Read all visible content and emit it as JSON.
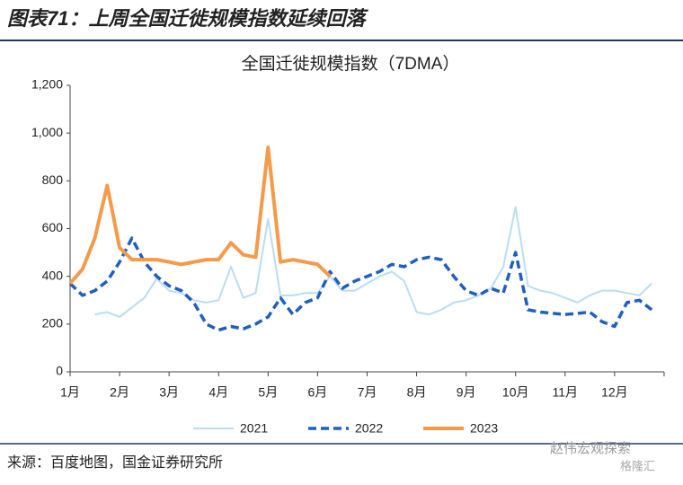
{
  "header_title": "图表71：上周全国迁徙规模指数延续回落",
  "source": "来源：百度地图，国金证券研究所",
  "watermark": [
    "赵伟宏观探索",
    "格隆汇"
  ],
  "chart_data": {
    "type": "line",
    "title": "全国迁徙规模指数（7DMA）",
    "categories": [
      "1月",
      null,
      null,
      null,
      "2月",
      null,
      null,
      null,
      "3月",
      null,
      null,
      null,
      "4月",
      null,
      null,
      null,
      "5月",
      null,
      null,
      null,
      "6月",
      null,
      null,
      null,
      "7月",
      null,
      null,
      null,
      "8月",
      null,
      null,
      null,
      "9月",
      null,
      null,
      null,
      "10月",
      null,
      null,
      null,
      "11月",
      null,
      null,
      null,
      "12月",
      null,
      null,
      null
    ],
    "ylim": [
      0,
      1200
    ],
    "yticks": [
      0,
      200,
      400,
      600,
      800,
      {
        "value": 1000,
        "label": "1,000"
      },
      {
        "value": 1200,
        "label": "1,200"
      }
    ],
    "legend": "bottom",
    "series": [
      {
        "name": "2021",
        "color": "#b9ddf2",
        "style": "solid",
        "values": [
          null,
          null,
          240,
          250,
          230,
          270,
          310,
          390,
          340,
          330,
          300,
          290,
          300,
          440,
          310,
          330,
          640,
          320,
          320,
          330,
          330,
          400,
          340,
          340,
          370,
          400,
          420,
          380,
          250,
          240,
          260,
          290,
          300,
          320,
          350,
          440,
          690,
          360,
          340,
          330,
          310,
          290,
          320,
          340,
          340,
          330,
          320,
          370
        ]
      },
      {
        "name": "2022",
        "color": "#1f5fbf",
        "style": "dashed",
        "values": [
          370,
          320,
          340,
          380,
          460,
          560,
          460,
          400,
          360,
          340,
          290,
          200,
          175,
          190,
          180,
          200,
          230,
          310,
          240,
          290,
          310,
          420,
          350,
          380,
          400,
          420,
          450,
          440,
          470,
          480,
          470,
          400,
          340,
          320,
          350,
          330,
          500,
          260,
          250,
          245,
          240,
          245,
          250,
          210,
          190,
          290,
          300,
          260
        ]
      },
      {
        "name": "2023",
        "color": "#f59a4a",
        "style": "solid",
        "values": [
          370,
          430,
          560,
          780,
          520,
          470,
          470,
          470,
          460,
          450,
          460,
          470,
          470,
          540,
          490,
          480,
          940,
          460,
          470,
          460,
          450,
          400,
          null,
          null,
          null,
          null,
          null,
          null,
          null,
          null,
          null,
          null,
          null,
          null,
          null,
          null,
          null,
          null,
          null,
          null,
          null,
          null,
          null,
          null,
          null,
          null,
          null,
          null
        ]
      }
    ]
  }
}
